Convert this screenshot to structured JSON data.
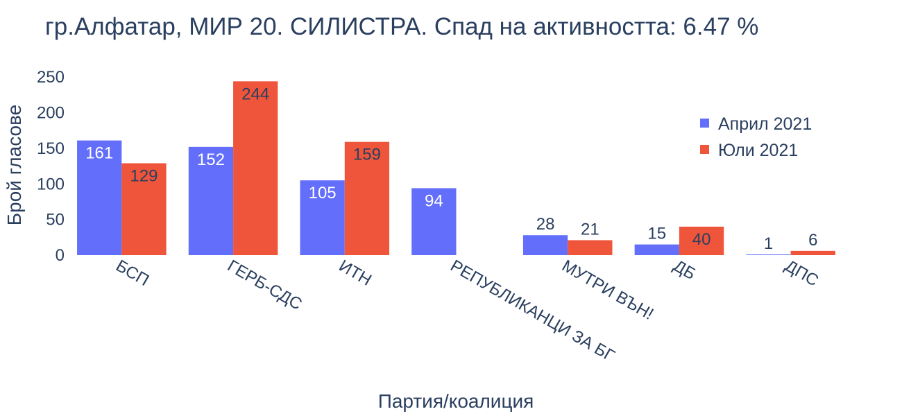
{
  "chart_data": {
    "type": "bar",
    "title": "гр.Алфатар, МИР 20. СИЛИСТРА. Спад на активността: 6.47  %",
    "xlabel": "Партия/коалиция",
    "ylabel": "Брой гласове",
    "categories": [
      "БСП",
      "ГЕРБ-СДС",
      "ИТН",
      "РЕПУБЛИКАНЦИ ЗА БГ",
      "МУТРИ ВЪН!",
      "ДБ",
      "ДПС"
    ],
    "series": [
      {
        "name": "Април 2021",
        "color": "#636efa",
        "values": [
          161,
          152,
          105,
          94,
          28,
          15,
          1
        ]
      },
      {
        "name": "Юли 2021",
        "color": "#ef553b",
        "values": [
          129,
          244,
          159,
          0,
          21,
          40,
          6
        ]
      }
    ],
    "ylim": [
      0,
      256
    ],
    "yticks": [
      0,
      50,
      100,
      150,
      200,
      250
    ],
    "grid": false,
    "legend": "top-right"
  }
}
